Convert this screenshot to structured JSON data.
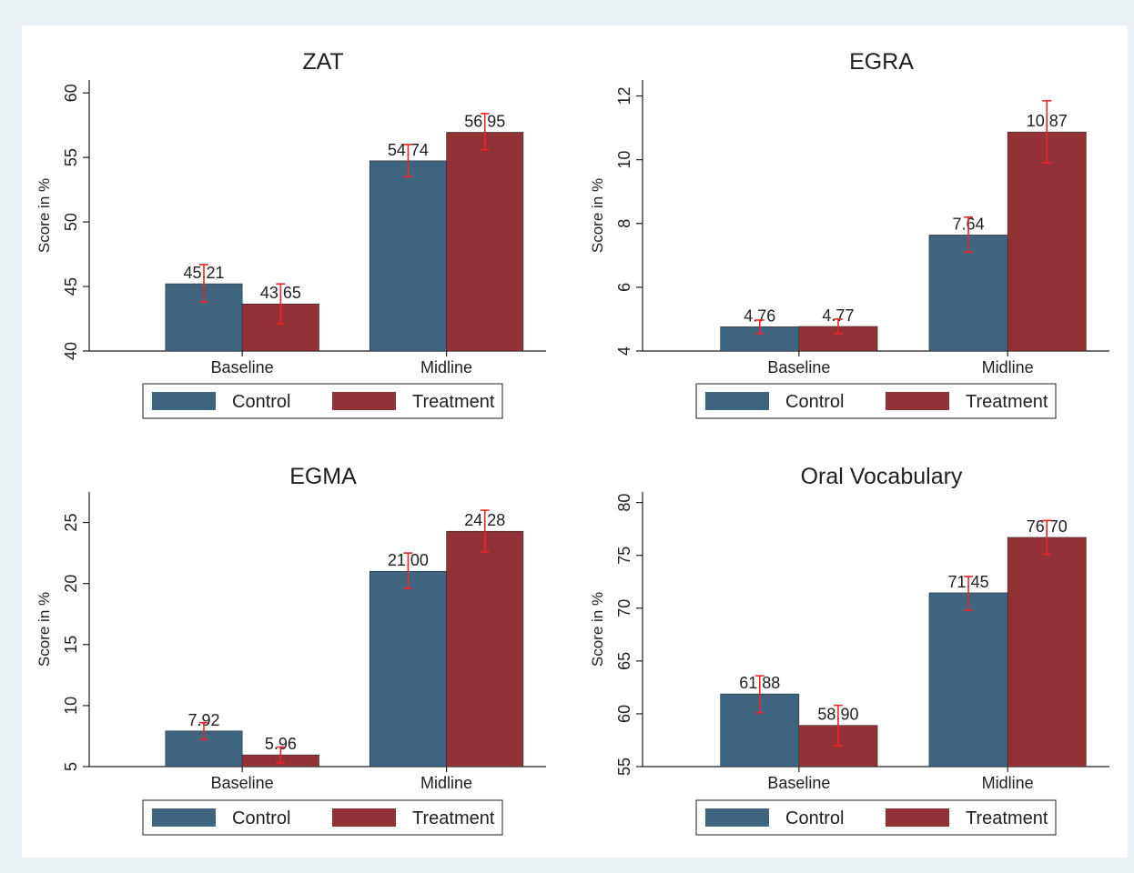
{
  "chart_data": [
    {
      "type": "bar",
      "title": "ZAT",
      "ylabel": "Score in %",
      "xlabel": "",
      "ylim": [
        40,
        61
      ],
      "yticks": [
        40,
        45,
        50,
        55,
        60
      ],
      "categories": [
        "Baseline",
        "Midline"
      ],
      "series": [
        {
          "name": "Control",
          "color": "#3e6480",
          "values": [
            45.21,
            54.74
          ],
          "value_labels": [
            "45.21",
            "54.74"
          ],
          "ci_low": [
            43.8,
            53.5
          ],
          "ci_high": [
            46.7,
            56.0
          ]
        },
        {
          "name": "Treatment",
          "color": "#923237",
          "values": [
            43.65,
            56.95
          ],
          "value_labels": [
            "43.65",
            "56.95"
          ],
          "ci_low": [
            42.1,
            55.6
          ],
          "ci_high": [
            45.2,
            58.4
          ]
        }
      ],
      "legend": "bottom",
      "grid": false
    },
    {
      "type": "bar",
      "title": "EGRA",
      "ylabel": "Score in %",
      "xlabel": "",
      "ylim": [
        4,
        12.5
      ],
      "yticks": [
        4,
        6,
        8,
        10,
        12
      ],
      "categories": [
        "Baseline",
        "Midline"
      ],
      "series": [
        {
          "name": "Control",
          "color": "#3e6480",
          "values": [
            4.76,
            7.64
          ],
          "value_labels": [
            "4.76",
            "7.64"
          ],
          "ci_low": [
            4.55,
            7.1
          ],
          "ci_high": [
            4.97,
            8.2
          ]
        },
        {
          "name": "Treatment",
          "color": "#923237",
          "values": [
            4.77,
            10.87
          ],
          "value_labels": [
            "4.77",
            "10.87"
          ],
          "ci_low": [
            4.55,
            9.9
          ],
          "ci_high": [
            5.0,
            11.85
          ]
        }
      ],
      "legend": "bottom",
      "grid": false
    },
    {
      "type": "bar",
      "title": "EGMA",
      "ylabel": "Score in %",
      "xlabel": "",
      "ylim": [
        5,
        27.5
      ],
      "yticks": [
        5,
        10,
        15,
        20,
        25
      ],
      "categories": [
        "Baseline",
        "Midline"
      ],
      "series": [
        {
          "name": "Control",
          "color": "#3e6480",
          "values": [
            7.92,
            21.0
          ],
          "value_labels": [
            "7.92",
            "21.00"
          ],
          "ci_low": [
            7.2,
            19.6
          ],
          "ci_high": [
            8.6,
            22.5
          ]
        },
        {
          "name": "Treatment",
          "color": "#923237",
          "values": [
            5.96,
            24.28
          ],
          "value_labels": [
            "5.96",
            "24.28"
          ],
          "ci_low": [
            5.3,
            22.6
          ],
          "ci_high": [
            6.6,
            26.0
          ]
        }
      ],
      "legend": "bottom",
      "grid": false
    },
    {
      "type": "bar",
      "title": "Oral Vocabulary",
      "ylabel": "Score in %",
      "xlabel": "",
      "ylim": [
        55,
        81
      ],
      "yticks": [
        55,
        60,
        65,
        70,
        75,
        80
      ],
      "categories": [
        "Baseline",
        "Midline"
      ],
      "series": [
        {
          "name": "Control",
          "color": "#3e6480",
          "values": [
            61.88,
            71.45
          ],
          "value_labels": [
            "61.88",
            "71.45"
          ],
          "ci_low": [
            60.1,
            69.8
          ],
          "ci_high": [
            63.6,
            73.0
          ]
        },
        {
          "name": "Treatment",
          "color": "#923237",
          "values": [
            58.9,
            76.7
          ],
          "value_labels": [
            "58.90",
            "76.70"
          ],
          "ci_low": [
            57.0,
            75.1
          ],
          "ci_high": [
            60.8,
            78.3
          ]
        }
      ],
      "legend": "bottom",
      "grid": false
    }
  ]
}
